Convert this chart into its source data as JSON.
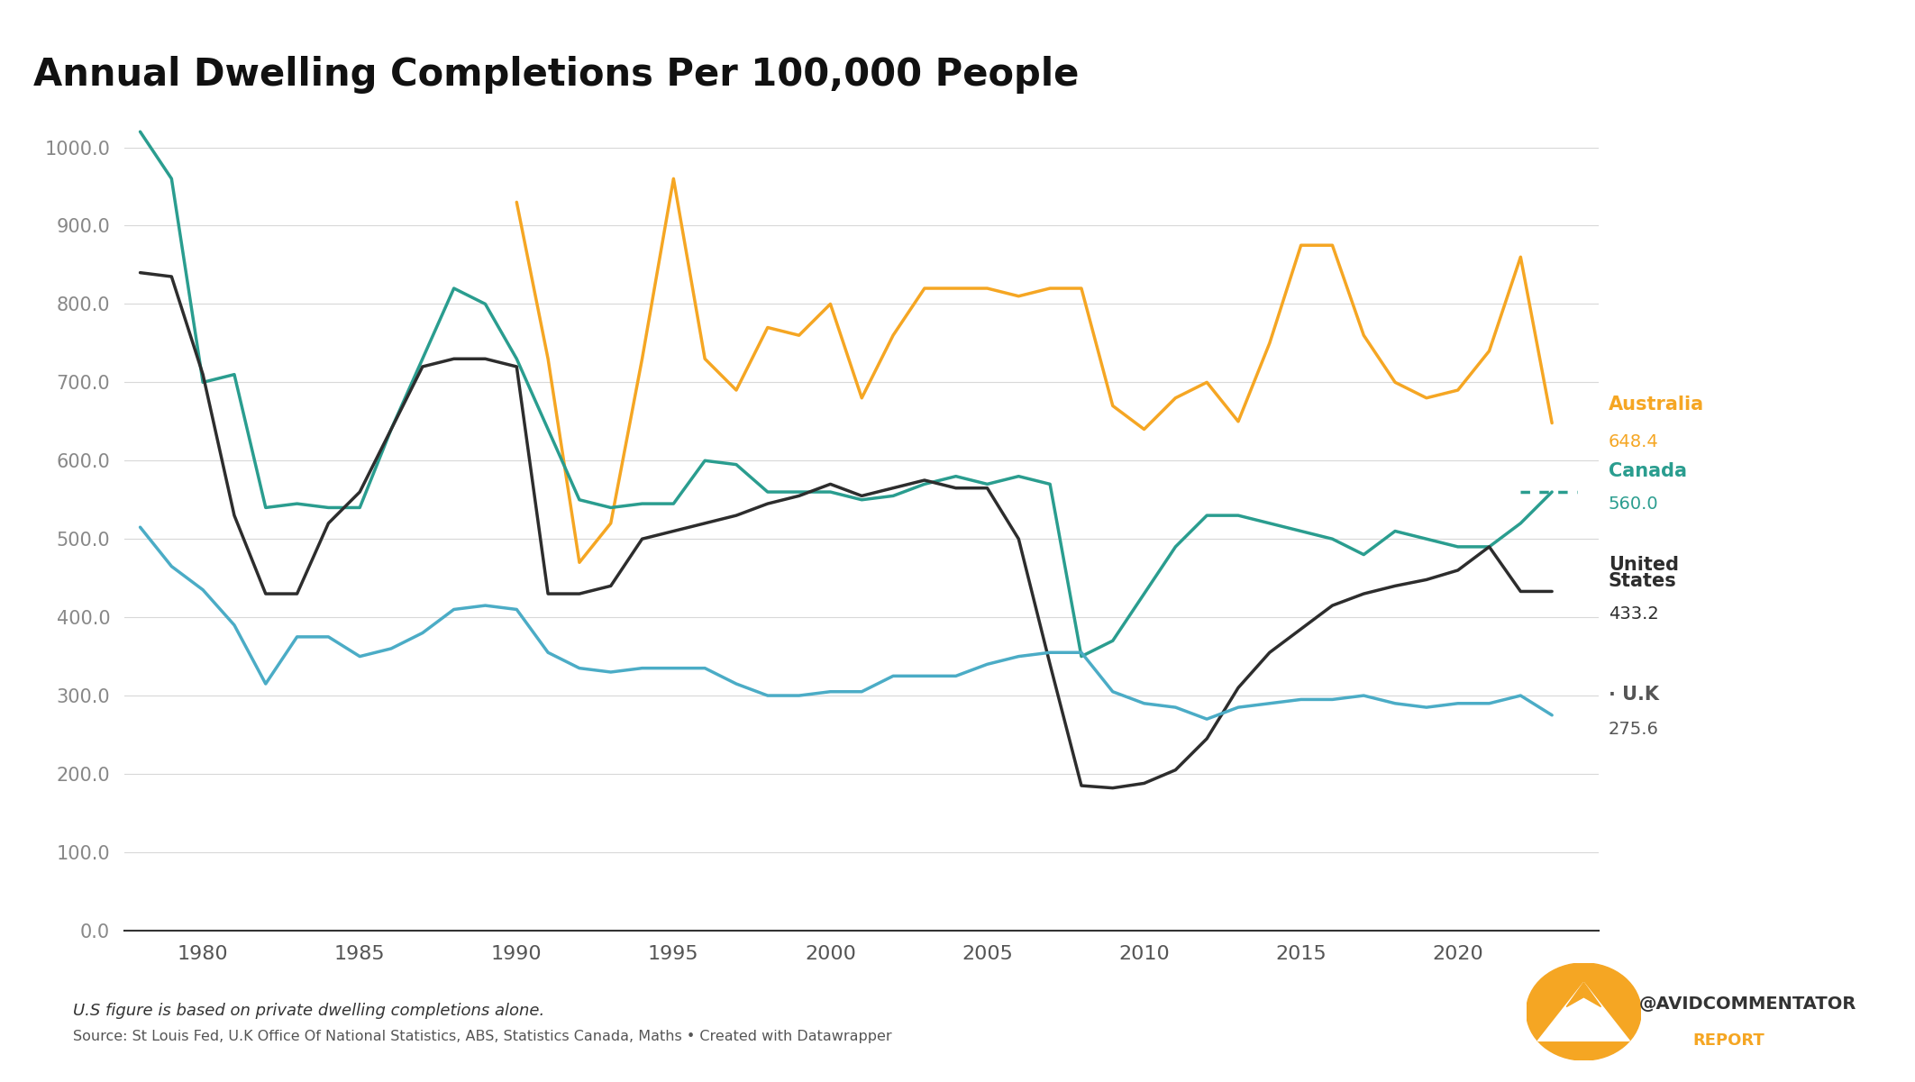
{
  "title": "Annual Dwelling Completions Per 100,000 People",
  "background_color": "#ffffff",
  "plot_bg_color": "#ffffff",
  "australia_color": "#f5a623",
  "canada_color": "#2a9d8f",
  "us_color": "#2d2d2d",
  "uk_color": "#4bacc6",
  "years": [
    1978,
    1979,
    1980,
    1981,
    1982,
    1983,
    1984,
    1985,
    1986,
    1987,
    1988,
    1989,
    1990,
    1991,
    1992,
    1993,
    1994,
    1995,
    1996,
    1997,
    1998,
    1999,
    2000,
    2001,
    2002,
    2003,
    2004,
    2005,
    2006,
    2007,
    2008,
    2009,
    2010,
    2011,
    2012,
    2013,
    2014,
    2015,
    2016,
    2017,
    2018,
    2019,
    2020,
    2021,
    2022,
    2023
  ],
  "australia": [
    null,
    null,
    null,
    null,
    null,
    null,
    null,
    null,
    null,
    null,
    null,
    null,
    930,
    730,
    470,
    520,
    730,
    960,
    730,
    690,
    770,
    760,
    800,
    680,
    760,
    820,
    820,
    820,
    810,
    820,
    820,
    670,
    640,
    680,
    700,
    650,
    750,
    875,
    875,
    760,
    700,
    680,
    690,
    740,
    860,
    648
  ],
  "canada": [
    1020,
    960,
    700,
    710,
    540,
    545,
    540,
    540,
    640,
    730,
    820,
    800,
    730,
    640,
    550,
    540,
    545,
    545,
    600,
    595,
    560,
    560,
    560,
    550,
    555,
    570,
    580,
    570,
    580,
    570,
    350,
    370,
    430,
    490,
    530,
    530,
    520,
    510,
    500,
    480,
    510,
    500,
    490,
    490,
    520,
    560
  ],
  "us": [
    840,
    835,
    710,
    530,
    430,
    430,
    520,
    560,
    640,
    720,
    730,
    730,
    720,
    430,
    430,
    440,
    500,
    510,
    520,
    530,
    545,
    555,
    570,
    555,
    565,
    575,
    565,
    565,
    500,
    340,
    185,
    182,
    188,
    205,
    245,
    310,
    355,
    385,
    415,
    430,
    440,
    448,
    460,
    490,
    433,
    433
  ],
  "uk": [
    515,
    465,
    435,
    390,
    315,
    375,
    375,
    350,
    360,
    380,
    410,
    415,
    410,
    355,
    335,
    330,
    335,
    335,
    335,
    315,
    300,
    300,
    305,
    305,
    325,
    325,
    325,
    340,
    350,
    355,
    355,
    305,
    290,
    285,
    270,
    285,
    290,
    295,
    295,
    300,
    290,
    285,
    290,
    290,
    300,
    275
  ],
  "ylim": [
    0,
    1050
  ],
  "yticks": [
    0,
    100,
    200,
    300,
    400,
    500,
    600,
    700,
    800,
    900,
    1000
  ],
  "footnote": "U.S figure is based on private dwelling completions alone.",
  "source": "Source: St Louis Fed, U.K Office Of National Statistics, ABS, Statistics Canada, Maths • Created with Datawrapper"
}
